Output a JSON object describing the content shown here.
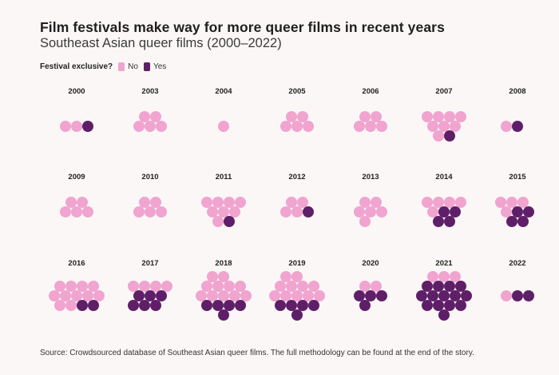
{
  "title": "Film festivals make way for more queer films in recent years",
  "subtitle": "Southeast Asian queer films (2000–2022)",
  "legend": {
    "label": "Festival exclusive?",
    "no": "No",
    "yes": "Yes"
  },
  "source": "Source: Crowdsourced database of Southeast Asian queer films. The full methodology can be found at the end of the story.",
  "colors": {
    "no": "#f0a4cf",
    "yes": "#5e1f68",
    "highlight": "#f29a84",
    "background": "#fbf7f6"
  },
  "chart_data": {
    "type": "dot-grid",
    "unit": "one film per dot",
    "series": [
      {
        "name": "No",
        "color": "#f0a4cf"
      },
      {
        "name": "Yes",
        "color": "#5e1f68"
      }
    ],
    "years": [
      {
        "year": "2000",
        "no": 2,
        "yes": 1
      },
      {
        "year": "2003",
        "no": 5,
        "yes": 0
      },
      {
        "year": "2004",
        "no": 1,
        "yes": 0
      },
      {
        "year": "2005",
        "no": 5,
        "yes": 0
      },
      {
        "year": "2006",
        "no": 5,
        "yes": 0
      },
      {
        "year": "2007",
        "no": 8,
        "yes": 1
      },
      {
        "year": "2008",
        "no": 1,
        "yes": 1
      },
      {
        "year": "2009",
        "no": 5,
        "yes": 0
      },
      {
        "year": "2010",
        "no": 5,
        "yes": 0
      },
      {
        "year": "2011",
        "no": 8,
        "yes": 1
      },
      {
        "year": "2012",
        "no": 4,
        "yes": 1
      },
      {
        "year": "2013",
        "no": 6,
        "yes": 0
      },
      {
        "year": "2014",
        "no": 5,
        "yes": 4
      },
      {
        "year": "2015",
        "no": 4,
        "yes": 4
      },
      {
        "year": "2016",
        "no": 11,
        "yes": 2
      },
      {
        "year": "2017",
        "no": 4,
        "yes": 6
      },
      {
        "year": "2018",
        "no": 11,
        "yes": 5
      },
      {
        "year": "2019",
        "no": 11,
        "yes": 5
      },
      {
        "year": "2020",
        "no": 2,
        "yes": 4
      },
      {
        "year": "2021",
        "no": 3,
        "yes": 14
      },
      {
        "year": "2022",
        "no": 1,
        "yes": 2
      }
    ]
  }
}
